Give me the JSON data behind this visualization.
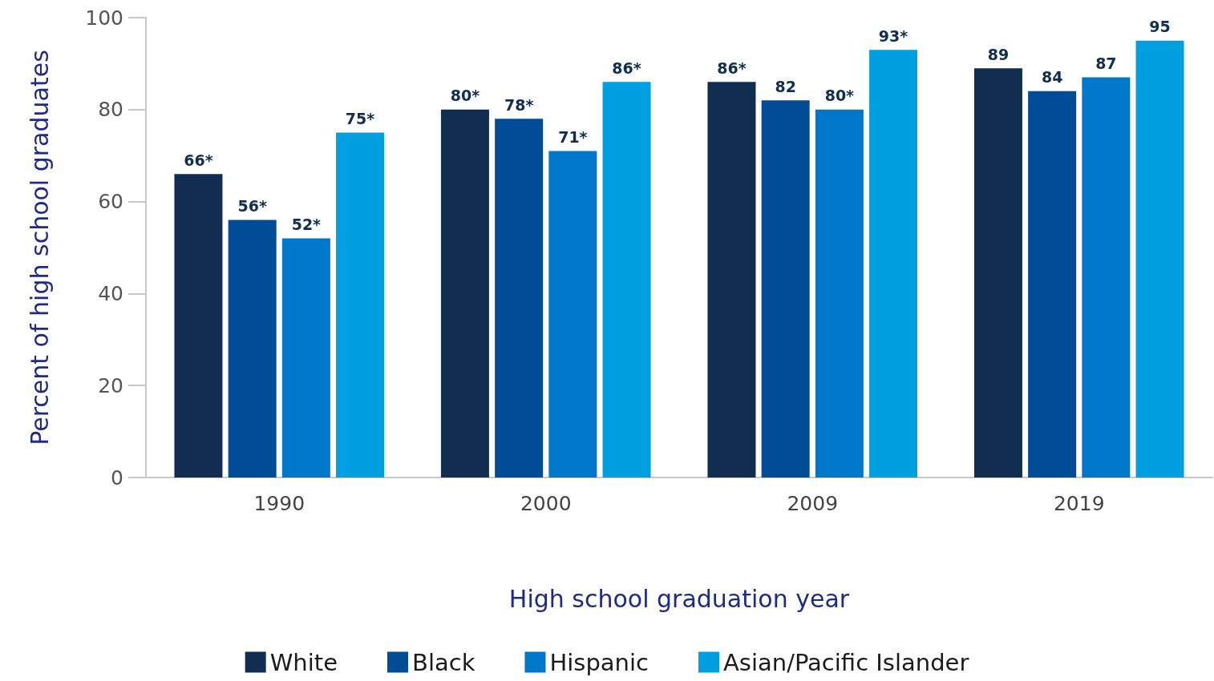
{
  "chart_data": {
    "type": "bar",
    "xlabel": "High school graduation year",
    "ylabel": "Percent of high school graduates",
    "categories": [
      "1990",
      "2000",
      "2009",
      "2019"
    ],
    "series": [
      {
        "name": "White",
        "color": "#112e51",
        "values": [
          66,
          80,
          86,
          89
        ],
        "value_labels": [
          "66*",
          "80*",
          "86*",
          "89"
        ]
      },
      {
        "name": "Black",
        "color": "#004c97",
        "values": [
          56,
          78,
          82,
          84
        ],
        "value_labels": [
          "56*",
          "78*",
          "82",
          "84"
        ]
      },
      {
        "name": "Hispanic",
        "color": "#0077c8",
        "values": [
          52,
          71,
          80,
          87
        ],
        "value_labels": [
          "52*",
          "71*",
          "80*",
          "87"
        ]
      },
      {
        "name": "Asian/Pacific Islander",
        "color": "#00a0e0",
        "values": [
          75,
          86,
          93,
          95
        ],
        "value_labels": [
          "75*",
          "86*",
          "93*",
          "95"
        ]
      }
    ],
    "ylim": [
      0,
      100
    ],
    "yticks": [
      0,
      20,
      40,
      60,
      80,
      100
    ],
    "grid": false,
    "legend": "bottom"
  }
}
